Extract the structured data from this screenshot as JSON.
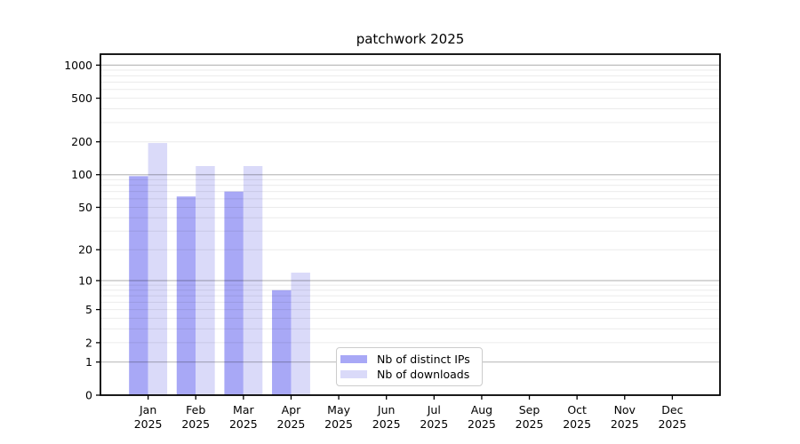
{
  "title": "patchwork 2025",
  "colors": {
    "ips_bar": "#a8a8f6",
    "downloads_bar": "#dadaf9",
    "grid_major": "rgba(0,0,0,0.26)",
    "grid_minor": "rgba(0,0,0,0.08)",
    "axis": "#000000",
    "text": "#000000",
    "legend_border": "#cccccc",
    "background": "#ffffff"
  },
  "chart_data": {
    "type": "bar",
    "title": "patchwork 2025",
    "x_categories": [
      "Jan",
      "Feb",
      "Mar",
      "Apr",
      "May",
      "Jun",
      "Jul",
      "Aug",
      "Sep",
      "Oct",
      "Nov",
      "Dec"
    ],
    "x_year_suffix": "2025",
    "y_scale": "log1p",
    "ylim": [
      0,
      1258
    ],
    "y_tick_labels": [
      0,
      1,
      2,
      5,
      10,
      20,
      50,
      100,
      200,
      500,
      1000
    ],
    "y_major_gridlines": [
      1,
      10,
      100,
      1000
    ],
    "y_minor_gridlines": [
      2,
      3,
      4,
      5,
      6,
      7,
      8,
      9,
      20,
      30,
      40,
      50,
      60,
      70,
      80,
      90,
      200,
      300,
      400,
      500,
      600,
      700,
      800,
      900
    ],
    "grid": true,
    "legend_position": "lower-center-inside",
    "series": [
      {
        "name": "Nb of distinct IPs",
        "values": [
          97,
          63,
          70,
          8,
          0,
          0,
          0,
          0,
          0,
          0,
          0,
          0
        ]
      },
      {
        "name": "Nb of downloads",
        "values": [
          195,
          120,
          120,
          12,
          0,
          0,
          0,
          0,
          0,
          0,
          0,
          0
        ]
      }
    ]
  }
}
